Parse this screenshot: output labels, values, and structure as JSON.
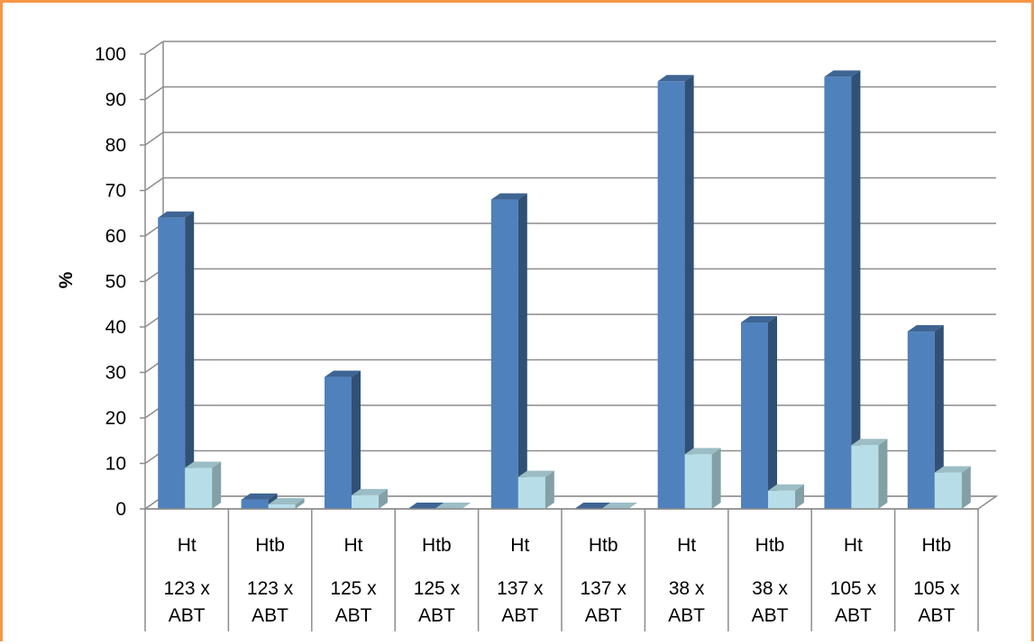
{
  "chart_data": {
    "type": "bar",
    "title": "",
    "xlabel": "",
    "ylabel": "%",
    "ylim": [
      0,
      100
    ],
    "yticks": [
      0,
      10,
      20,
      30,
      40,
      50,
      60,
      70,
      80,
      90,
      100
    ],
    "grid": true,
    "legend": "none",
    "categories": [
      {
        "type": "Ht",
        "cross": "123 x ABT"
      },
      {
        "type": "Htb",
        "cross": "123 x ABT"
      },
      {
        "type": "Ht",
        "cross": "125 x ABT"
      },
      {
        "type": "Htb",
        "cross": "125 x ABT"
      },
      {
        "type": "Ht",
        "cross": "137 x ABT"
      },
      {
        "type": "Htb",
        "cross": "137 x ABT"
      },
      {
        "type": "Ht",
        "cross": "38 x ABT"
      },
      {
        "type": "Htb",
        "cross": "38 x ABT"
      },
      {
        "type": "Ht",
        "cross": "105 x ABT"
      },
      {
        "type": "Htb",
        "cross": "105 x ABT"
      }
    ],
    "series": [
      {
        "values": [
          64,
          2,
          29,
          0,
          68,
          0,
          94,
          41,
          95,
          39
        ],
        "color": "#4F81BD"
      },
      {
        "values": [
          9,
          1,
          3,
          0,
          7,
          0,
          12,
          4,
          14,
          8
        ],
        "color": "#B7DEE8"
      }
    ]
  }
}
